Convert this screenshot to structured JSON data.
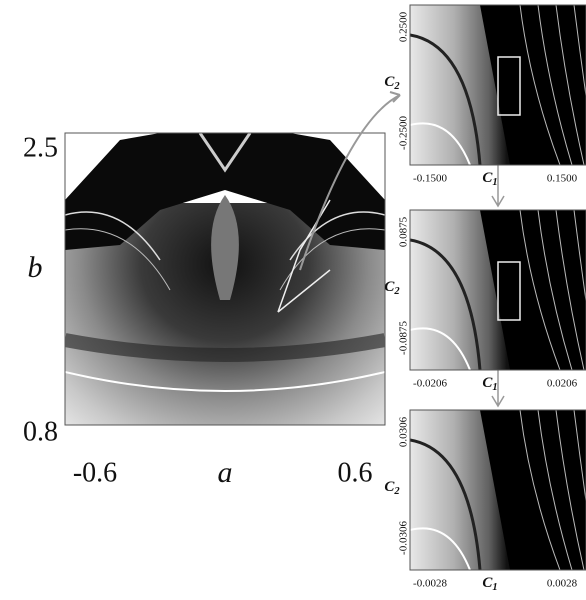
{
  "main_panel": {
    "y_axis": {
      "label": "b",
      "top": "2.5",
      "bottom": "0.8"
    },
    "x_axis": {
      "label": "a",
      "left": "-0.6",
      "right": "0.6"
    }
  },
  "zoom_panels": [
    {
      "y_axis": {
        "symbol": "C",
        "subscript": "2",
        "top": "0.2500",
        "bottom": "-0.2500"
      },
      "x_axis": {
        "symbol": "C",
        "subscript": "1",
        "left": "-0.1500",
        "right": "0.1500"
      }
    },
    {
      "y_axis": {
        "symbol": "C",
        "subscript": "2",
        "top": "0.0875",
        "bottom": "-0.0875"
      },
      "x_axis": {
        "symbol": "C",
        "subscript": "1",
        "left": "-0.0206",
        "right": "0.0206"
      }
    },
    {
      "y_axis": {
        "symbol": "C",
        "subscript": "2",
        "top": "0.0306",
        "bottom": "-0.0306"
      },
      "x_axis": {
        "symbol": "C",
        "subscript": "1",
        "left": "-0.0028",
        "right": "0.0028"
      }
    }
  ]
}
